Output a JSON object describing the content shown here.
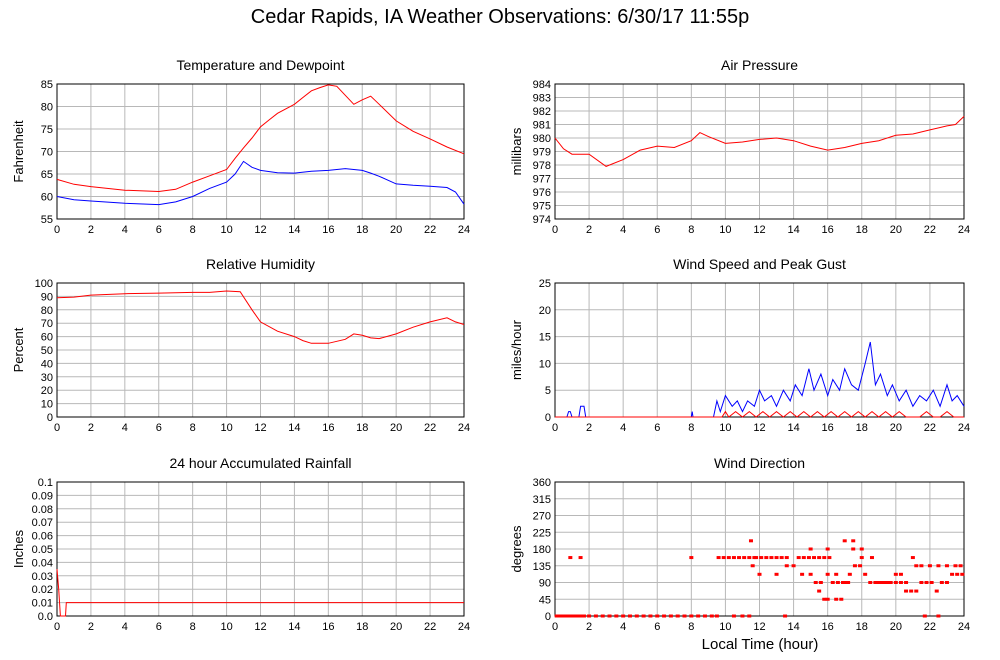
{
  "title": "Cedar Rapids, IA Weather Observations: 6/30/17 11:55p",
  "xlabel": "Local Time (hour)",
  "colors": {
    "red": "#ff0000",
    "blue": "#0000ff",
    "grid": "#b8b8b8"
  },
  "chart_data": [
    {
      "type": "line",
      "title": "Temperature and Dewpoint",
      "ylabel": "Fahrenheit",
      "xlim": [
        0,
        24
      ],
      "xticks": [
        0,
        2,
        4,
        6,
        8,
        10,
        12,
        14,
        16,
        18,
        20,
        22,
        24
      ],
      "ylim": [
        55,
        85
      ],
      "yticks": [
        55,
        60,
        65,
        70,
        75,
        80,
        85
      ],
      "grid": true,
      "series": [
        {
          "color": "#ff0000",
          "x": [
            0,
            1,
            2,
            4,
            6,
            7,
            8,
            9,
            10,
            10.5,
            11,
            11.5,
            12,
            12.5,
            13,
            14,
            14.5,
            15,
            15.5,
            16,
            16.5,
            17,
            17.5,
            18,
            18.5,
            19,
            20,
            21,
            22,
            23,
            24
          ],
          "y": [
            63.8,
            62.7,
            62.2,
            61.4,
            61.1,
            61.6,
            63.2,
            64.6,
            66.0,
            68.5,
            70.8,
            73.0,
            75.5,
            77.0,
            78.5,
            80.5,
            82.0,
            83.5,
            84.2,
            84.8,
            84.5,
            82.5,
            80.5,
            81.5,
            82.3,
            80.5,
            76.8,
            74.5,
            72.8,
            71.0,
            69.5
          ]
        },
        {
          "color": "#0000ff",
          "x": [
            0,
            1,
            2,
            4,
            6,
            7,
            8,
            9,
            10,
            10.5,
            11,
            11.5,
            12,
            13,
            14,
            15,
            16,
            17,
            18,
            18.5,
            19,
            20,
            21,
            22,
            23,
            23.5,
            24
          ],
          "y": [
            60.0,
            59.3,
            59.0,
            58.5,
            58.2,
            58.8,
            60.0,
            61.8,
            63.2,
            65.0,
            67.8,
            66.5,
            65.8,
            65.3,
            65.2,
            65.6,
            65.8,
            66.2,
            65.8,
            65.2,
            64.5,
            62.8,
            62.5,
            62.3,
            62.0,
            61.0,
            58.3
          ]
        }
      ]
    },
    {
      "type": "line",
      "title": "Air Pressure",
      "ylabel": "millibars",
      "xlim": [
        0,
        24
      ],
      "xticks": [
        0,
        2,
        4,
        6,
        8,
        10,
        12,
        14,
        16,
        18,
        20,
        22,
        24
      ],
      "ylim": [
        974,
        984
      ],
      "yticks": [
        974,
        975,
        976,
        977,
        978,
        979,
        980,
        981,
        982,
        983,
        984
      ],
      "grid": true,
      "series": [
        {
          "color": "#ff0000",
          "x": [
            0,
            0.5,
            1,
            2,
            3,
            4,
            5,
            6,
            7,
            8,
            8.5,
            9,
            10,
            11,
            12,
            13,
            14,
            15,
            16,
            17,
            18,
            19,
            20,
            21,
            22,
            23,
            23.5,
            24
          ],
          "y": [
            980.0,
            979.2,
            978.8,
            978.8,
            977.9,
            978.4,
            979.1,
            979.4,
            979.3,
            979.8,
            980.4,
            980.1,
            979.6,
            979.7,
            979.9,
            980.0,
            979.8,
            979.4,
            979.1,
            979.3,
            979.6,
            979.8,
            980.2,
            980.3,
            980.6,
            980.9,
            981.0,
            981.6
          ]
        }
      ]
    },
    {
      "type": "line",
      "title": "Relative Humidity",
      "ylabel": "Percent",
      "xlim": [
        0,
        24
      ],
      "xticks": [
        0,
        2,
        4,
        6,
        8,
        10,
        12,
        14,
        16,
        18,
        20,
        22,
        24
      ],
      "ylim": [
        0,
        100
      ],
      "yticks": [
        0,
        10,
        20,
        30,
        40,
        50,
        60,
        70,
        80,
        90,
        100
      ],
      "grid": true,
      "series": [
        {
          "color": "#ff0000",
          "x": [
            0,
            1,
            2,
            4,
            6,
            8,
            9,
            10,
            10.8,
            11.5,
            12,
            13,
            14,
            14.5,
            15,
            16,
            17,
            17.5,
            18,
            18.5,
            19,
            20,
            21,
            22,
            23,
            23.5,
            24
          ],
          "y": [
            89,
            89.5,
            91,
            92,
            92.5,
            93,
            93,
            94,
            93.5,
            80,
            71,
            64,
            60,
            57,
            55,
            55,
            58,
            62,
            61,
            59,
            58.5,
            62,
            67,
            71,
            74,
            71,
            69
          ]
        }
      ]
    },
    {
      "type": "line",
      "title": "Wind Speed and Peak Gust",
      "ylabel": "miles/hour",
      "xlim": [
        0,
        24
      ],
      "xticks": [
        0,
        2,
        4,
        6,
        8,
        10,
        12,
        14,
        16,
        18,
        20,
        22,
        24
      ],
      "ylim": [
        0,
        25
      ],
      "yticks": [
        0,
        5,
        10,
        15,
        20,
        25
      ],
      "grid": true,
      "series": [
        {
          "color": "#0000ff",
          "x": [
            0,
            0.7,
            0.8,
            0.9,
            1.0,
            1.4,
            1.5,
            1.7,
            1.8,
            2.0,
            8.0,
            8.05,
            8.1,
            8.2,
            9.3,
            9.5,
            9.7,
            10.0,
            10.4,
            10.7,
            11.0,
            11.3,
            11.7,
            12.0,
            12.3,
            12.7,
            13.0,
            13.4,
            13.8,
            14.1,
            14.5,
            14.9,
            15.2,
            15.6,
            16.0,
            16.3,
            16.7,
            17.0,
            17.4,
            17.8,
            18.2,
            18.5,
            18.8,
            19.1,
            19.5,
            19.8,
            20.2,
            20.6,
            21.0,
            21.4,
            21.8,
            22.2,
            22.6,
            23.0,
            23.3,
            23.6,
            24.0
          ],
          "y": [
            0,
            0,
            1,
            1,
            0,
            0,
            2,
            2,
            0,
            0,
            0,
            1,
            0,
            0,
            0,
            3,
            1,
            4,
            2,
            3,
            1,
            3,
            2,
            5,
            3,
            4,
            2,
            5,
            3,
            6,
            4,
            9,
            5,
            8,
            4,
            7,
            5,
            9,
            6,
            5,
            10,
            14,
            6,
            8,
            4,
            6,
            3,
            5,
            2,
            4,
            3,
            5,
            2,
            6,
            3,
            4,
            2
          ]
        },
        {
          "color": "#ff0000",
          "x": [
            0,
            9.8,
            10.0,
            10.2,
            10.6,
            11.0,
            11.4,
            11.8,
            12.2,
            12.6,
            13.0,
            13.4,
            13.8,
            14.2,
            14.6,
            15.0,
            15.4,
            15.8,
            16.2,
            16.6,
            17.0,
            17.4,
            17.8,
            18.2,
            18.6,
            19.0,
            19.4,
            19.8,
            20.2,
            20.6,
            21.0,
            21.4,
            21.8,
            22.2,
            22.6,
            23.0,
            23.4,
            24.0
          ],
          "y": [
            0,
            0,
            1,
            0,
            1,
            0,
            1,
            0,
            1,
            0,
            1,
            0,
            1,
            0,
            1,
            0,
            1,
            0,
            1,
            0,
            1,
            0,
            1,
            0,
            1,
            0,
            1,
            0,
            1,
            0,
            0,
            0,
            1,
            0,
            0,
            1,
            0,
            0
          ]
        }
      ]
    },
    {
      "type": "line",
      "title": "24 hour Accumulated Rainfall",
      "ylabel": "Inches",
      "xlim": [
        0,
        24
      ],
      "xticks": [
        0,
        2,
        4,
        6,
        8,
        10,
        12,
        14,
        16,
        18,
        20,
        22,
        24
      ],
      "ylim": [
        0,
        0.1
      ],
      "yticks": [
        "0.0",
        "0.01",
        "0.02",
        "0.03",
        "0.04",
        "0.05",
        "0.06",
        "0.07",
        "0.08",
        "0.09",
        "0.1"
      ],
      "grid": true,
      "series": [
        {
          "color": "#ff0000",
          "x": [
            0,
            0.1,
            0.2,
            0.5,
            0.55,
            24
          ],
          "y": [
            0.035,
            0.02,
            0.0,
            0.0,
            0.01,
            0.01
          ]
        }
      ]
    },
    {
      "type": "scatter",
      "title": "Wind Direction",
      "ylabel": "degrees",
      "xlim": [
        0,
        24
      ],
      "xticks": [
        0,
        2,
        4,
        6,
        8,
        10,
        12,
        14,
        16,
        18,
        20,
        22,
        24
      ],
      "ylim": [
        0,
        360
      ],
      "yticks": [
        0,
        45,
        90,
        135,
        180,
        225,
        270,
        315,
        360
      ],
      "grid": true,
      "series": [
        {
          "color": "#ff0000",
          "x": [
            0.1,
            0.3,
            0.5,
            0.7,
            0.9,
            1.1,
            1.3,
            1.5,
            0.9,
            1.5,
            1.7,
            2.0,
            2.4,
            2.8,
            3.2,
            3.6,
            4.0,
            4.4,
            4.8,
            5.2,
            5.6,
            6.0,
            6.4,
            6.8,
            7.2,
            7.6,
            8.0,
            8.4,
            8.8,
            9.2,
            8.0,
            9.6,
            9.9,
            10.2,
            10.5,
            10.8,
            11.1,
            11.4,
            11.7,
            10.5,
            11.0,
            11.4,
            11.6,
            11.8,
            12.1,
            12.4,
            12.7,
            13.0,
            13.3,
            13.6,
            12.0,
            13.0,
            13.6,
            14.0,
            14.3,
            14.6,
            14.9,
            15.2,
            15.5,
            15.8,
            16.1,
            14.5,
            15.0,
            15.3,
            15.6,
            16.0,
            16.3,
            16.6,
            16.9,
            17.2,
            15.5,
            15.8,
            16.0,
            16.5,
            16.8,
            17.0,
            17.3,
            17.6,
            17.9,
            18.2,
            18.5,
            18.8,
            19.1,
            19.4,
            19.7,
            20.0,
            20.3,
            17.5,
            18.0,
            18.6,
            19.0,
            19.3,
            19.6,
            20.0,
            20.3,
            20.6,
            20.9,
            21.2,
            21.5,
            21.8,
            22.1,
            22.4,
            22.7,
            23.0,
            23.3,
            23.6,
            23.9,
            20.6,
            21.2,
            21.5,
            22.0,
            22.5,
            23.0,
            23.5,
            23.8,
            11.5,
            15.0,
            16.0,
            17.0,
            17.5,
            18.0,
            16.5,
            21.0,
            9.5,
            13.5,
            21.7,
            22.5
          ],
          "y": [
            0,
            0,
            0,
            0,
            0,
            0,
            0,
            0,
            157,
            157,
            0,
            0,
            0,
            0,
            0,
            0,
            0,
            0,
            0,
            0,
            0,
            0,
            0,
            0,
            0,
            0,
            0,
            0,
            0,
            0,
            157,
            157,
            157,
            157,
            157,
            157,
            157,
            157,
            157,
            0,
            0,
            0,
            135,
            157,
            157,
            157,
            157,
            157,
            157,
            157,
            112,
            112,
            135,
            135,
            157,
            157,
            157,
            157,
            157,
            157,
            157,
            112,
            112,
            90,
            90,
            112,
            90,
            90,
            90,
            90,
            67,
            45,
            45,
            45,
            45,
            90,
            112,
            135,
            135,
            112,
            90,
            90,
            90,
            90,
            90,
            112,
            112,
            180,
            180,
            157,
            90,
            90,
            90,
            90,
            90,
            90,
            67,
            67,
            90,
            90,
            90,
            67,
            90,
            90,
            112,
            112,
            112,
            67,
            135,
            135,
            135,
            135,
            135,
            135,
            135,
            202,
            180,
            180,
            202,
            202,
            157,
            112,
            157,
            0,
            0,
            0,
            0
          ]
        }
      ]
    }
  ]
}
